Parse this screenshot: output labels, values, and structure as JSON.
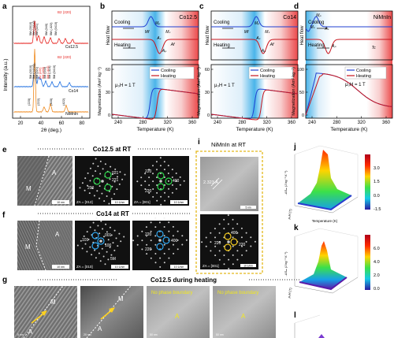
{
  "panel_letters": {
    "a": "a",
    "b": "b",
    "c": "c",
    "d": "d",
    "e": "e",
    "f": "f",
    "g": "g",
    "i": "i",
    "j": "j",
    "k": "k",
    "l": "l"
  },
  "xrd": {
    "xlabel": "2θ (deg.)",
    "ylabel": "Intensity (a.u.)",
    "xticks": [
      "20",
      "40",
      "60",
      "80"
    ],
    "samples": [
      "Co12.5",
      "Co14",
      "NiMnIn"
    ],
    "colors": [
      "#e6231f",
      "#1f6fe0",
      "#ef8a1f"
    ],
    "legend": "B2 (220)",
    "peaks_top": [
      "5M (0010)",
      "5M (-1210)",
      "5M (221)",
      "5M (040)",
      "5M (-323)",
      "5M (0410)"
    ],
    "peaks_mid": [
      "5M (0010)",
      "5M (-1210)",
      "5M (221)",
      "5M (040)",
      "5M (-323)",
      "5M (0410)"
    ],
    "peaks_mid_red": [
      "B2 (220)",
      "5M (400)",
      "5M (-323)"
    ],
    "peaks_bot": [
      "(220)",
      "(222)",
      "(400)",
      "(422)"
    ]
  },
  "chart_data": [
    {
      "type": "line",
      "panel": "b",
      "title": "Co12.5",
      "ylabel_top": "Heat flow",
      "ylabel": "Magnetization (Am² kg⁻¹)",
      "xlabel": "Temperature (K)",
      "xticks": [
        "240",
        "280",
        "320",
        "360"
      ],
      "yticks": [
        "0",
        "30",
        "60"
      ],
      "transition_labels": [
        "Mₚ",
        "Mf",
        "Mₛ",
        "Aₛ",
        "Aₚ",
        "Af"
      ],
      "field": "μ₀H = 1 T",
      "series": [
        {
          "name": "Cooling",
          "color": "#1f3fd1"
        },
        {
          "name": "Heating",
          "color": "#c8141c"
        }
      ],
      "annotations": [
        "Cooling",
        "Heating"
      ]
    },
    {
      "type": "line",
      "panel": "c",
      "title": "Co14",
      "ylabel_top": "Heat flow",
      "ylabel": "Magnetization (Am² kg⁻¹)",
      "xlabel": "Temperature (K)",
      "xticks": [
        "240",
        "280",
        "320",
        "360"
      ],
      "yticks": [
        "0",
        "30",
        "60"
      ],
      "transition_labels": [
        "Mₚ",
        "Mf",
        "Mₛ",
        "Aₛ",
        "Aₚ",
        "Af"
      ],
      "field": "μ₀H = 1 T",
      "series": [
        {
          "name": "Cooling",
          "color": "#1f3fd1"
        },
        {
          "name": "Heating",
          "color": "#c8141c"
        }
      ],
      "annotations": [
        "Cooling",
        "Heating"
      ]
    },
    {
      "type": "line",
      "panel": "d",
      "title": "NiMnIn",
      "ylabel_top": "Heat flow",
      "ylabel": "Magnetization (Am² kg⁻¹)",
      "xlabel": "Temperature (K)",
      "xticks": [
        "240",
        "280",
        "320",
        "360"
      ],
      "yticks": [
        "0",
        "50",
        "100"
      ],
      "transition_labels": [
        "Mₚ",
        "Mₛ",
        "Aₛ",
        "Aₚ",
        "Tc"
      ],
      "field": "μ₀H = 1 T",
      "series": [
        {
          "name": "Cooling",
          "color": "#1f3fd1"
        },
        {
          "name": "Heating",
          "color": "#c8141c"
        }
      ],
      "annotations": [
        "Cooling",
        "Heating"
      ]
    }
  ],
  "tem_e": {
    "header": "Co12.5 at RT",
    "labels": [
      "A",
      "M"
    ],
    "zone1": "ZA = [012]",
    "zone2": "ZA = [001]",
    "spots1": [
      "021",
      "221",
      "200"
    ],
    "spots2": [
      "220",
      "400",
      "220"
    ],
    "scale1": "10 nm",
    "scale2": "10 1/nm",
    "scale3": "10 1/nm"
  },
  "tem_f": {
    "header": "Co14 at RT",
    "labels": [
      "M",
      "A"
    ],
    "zone1": "ZA = [010]",
    "zone2": "ZA = [001]",
    "spots1": [
      "101",
      "001",
      "100"
    ],
    "spots2": [
      "220",
      "400",
      "220"
    ],
    "tag": "5M",
    "scale1": "10 nm",
    "scale2": "10 1/nm",
    "scale3": "10 1/nm"
  },
  "tem_g": {
    "header": "Co12.5 during heating",
    "frame_labels": [
      "A",
      "M",
      "A",
      "M",
      "A",
      "A"
    ],
    "no_boundary": [
      "No phase boundary",
      "No phase boundary"
    ],
    "scales": [
      "5 nm",
      "20 nm",
      "50 nm",
      "50 nm"
    ]
  },
  "tem_i": {
    "header": "NiMnIn at RT",
    "distance": "2.323 Å",
    "spots": [
      "220",
      "400",
      "220"
    ],
    "zone": "ZA = [001]",
    "scale1": "5 nm",
    "scale2": "10 1/nm"
  },
  "surf_j": {
    "zlabel": "-ΔSₘ (J kg⁻¹ K⁻¹)",
    "ylabel": "μ₀H (T)",
    "xlabel": "Temperature (K)",
    "xticks": [
      "260",
      "280",
      "300",
      "320",
      "340",
      "360"
    ],
    "cbar": [
      "3.0",
      "1.5",
      "0.0",
      "-1.5"
    ]
  },
  "surf_k": {
    "zlabel": "-ΔSₘ (J kg⁻¹ K⁻¹)",
    "ylabel": "μ₀H (T)",
    "xlabel": "Temperature (K)",
    "cbar": [
      "6.0",
      "4.0",
      "2.0",
      "0.0"
    ]
  },
  "bands": {
    "blue": "#2aa7e6",
    "red": "#e8292a"
  }
}
